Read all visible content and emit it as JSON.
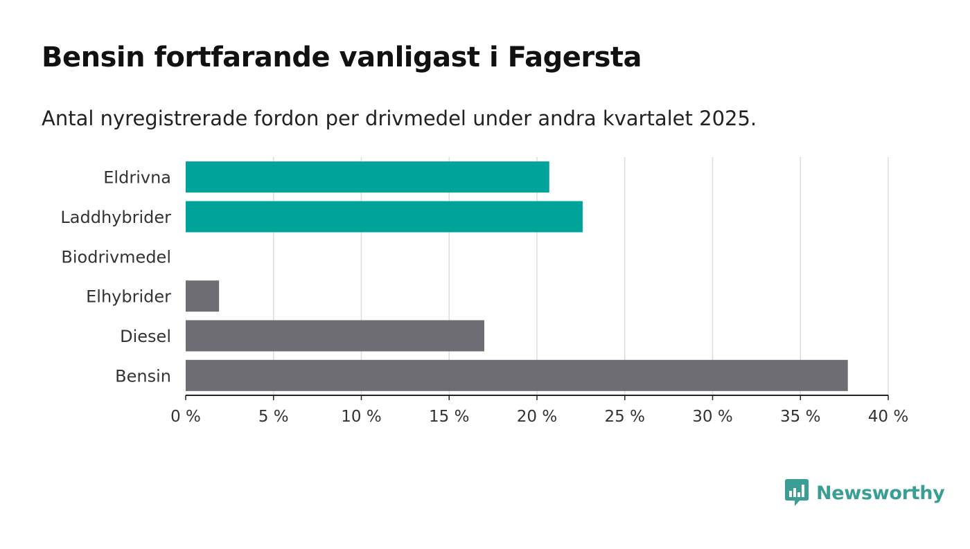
{
  "title": "Bensin fortfarande vanligast i Fagersta",
  "subtitle": "Antal nyregistrerade fordon per drivmedel under andra kvartalet 2025.",
  "brand": {
    "name": "Newsworthy",
    "color": "#3b9e95"
  },
  "chart_data": {
    "type": "bar",
    "orientation": "horizontal",
    "categories": [
      "Eldrivna",
      "Laddhybrider",
      "Biodrivmedel",
      "Elhybrider",
      "Diesel",
      "Bensin"
    ],
    "values": [
      20.7,
      22.6,
      0,
      1.9,
      17.0,
      37.7
    ],
    "colors": [
      "#00a39a",
      "#00a39a",
      "#6e6d73",
      "#6e6d73",
      "#6e6d73",
      "#6e6d73"
    ],
    "xlim": [
      0,
      40
    ],
    "xticks": [
      0,
      5,
      10,
      15,
      20,
      25,
      30,
      35,
      40
    ],
    "xtick_labels": [
      "0 %",
      "5 %",
      "10 %",
      "15 %",
      "20 %",
      "25 %",
      "30 %",
      "35 %",
      "40 %"
    ],
    "xlabel": "",
    "ylabel": "",
    "grid": "vertical"
  }
}
